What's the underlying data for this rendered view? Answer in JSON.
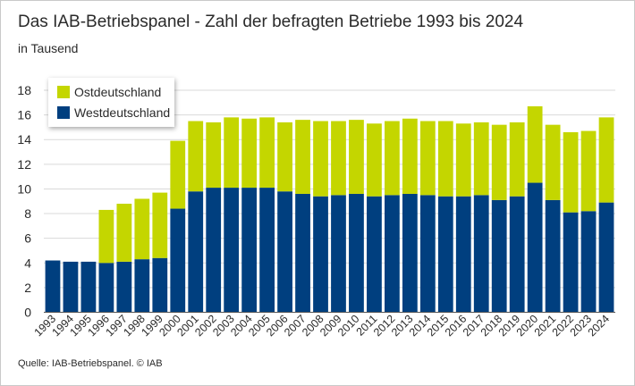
{
  "title": "Das IAB-Betriebspanel - Zahl der befragten Betriebe 1993 bis 2024",
  "subtitle": "in Tausend",
  "source": "Quelle: IAB-Betriebspanel. © IAB",
  "colors": {
    "west": "#003f7f",
    "ost": "#c4d600",
    "grid": "#d9d9d9",
    "axis": "#555555"
  },
  "chart_data": {
    "type": "bar",
    "stacked": true,
    "title": "Das IAB-Betriebspanel - Zahl der befragten Betriebe 1993 bis 2024",
    "ylabel": "in Tausend",
    "xlabel": "",
    "ylim": [
      0,
      18
    ],
    "yticks": [
      0,
      2,
      4,
      6,
      8,
      10,
      12,
      14,
      16,
      18
    ],
    "grid": true,
    "legend_position": "top-left",
    "categories": [
      "1993",
      "1994",
      "1995",
      "1996",
      "1997",
      "1998",
      "1999",
      "2000",
      "2001",
      "2002",
      "2003",
      "2004",
      "2005",
      "2006",
      "2007",
      "2008",
      "2009",
      "2010",
      "2011",
      "2012",
      "2013",
      "2014",
      "2015",
      "2016",
      "2017",
      "2018",
      "2019",
      "2020",
      "2021",
      "2022",
      "2023",
      "2024"
    ],
    "series": [
      {
        "name": "Westdeutschland",
        "values": [
          4.2,
          4.1,
          4.1,
          4.0,
          4.1,
          4.3,
          4.4,
          8.4,
          9.8,
          10.1,
          10.1,
          10.1,
          10.1,
          9.8,
          9.6,
          9.4,
          9.5,
          9.6,
          9.4,
          9.5,
          9.6,
          9.5,
          9.4,
          9.4,
          9.5,
          9.1,
          9.4,
          10.5,
          9.1,
          8.1,
          8.2,
          8.9
        ]
      },
      {
        "name": "Ostdeutschland",
        "values": [
          0,
          0,
          0,
          4.3,
          4.7,
          4.9,
          5.3,
          5.5,
          5.7,
          5.3,
          5.7,
          5.6,
          5.7,
          5.6,
          6.0,
          6.1,
          6.0,
          6.0,
          5.9,
          6.0,
          6.1,
          6.0,
          6.1,
          5.9,
          5.9,
          6.1,
          6.0,
          6.2,
          6.1,
          6.5,
          6.5,
          6.9
        ]
      }
    ]
  }
}
